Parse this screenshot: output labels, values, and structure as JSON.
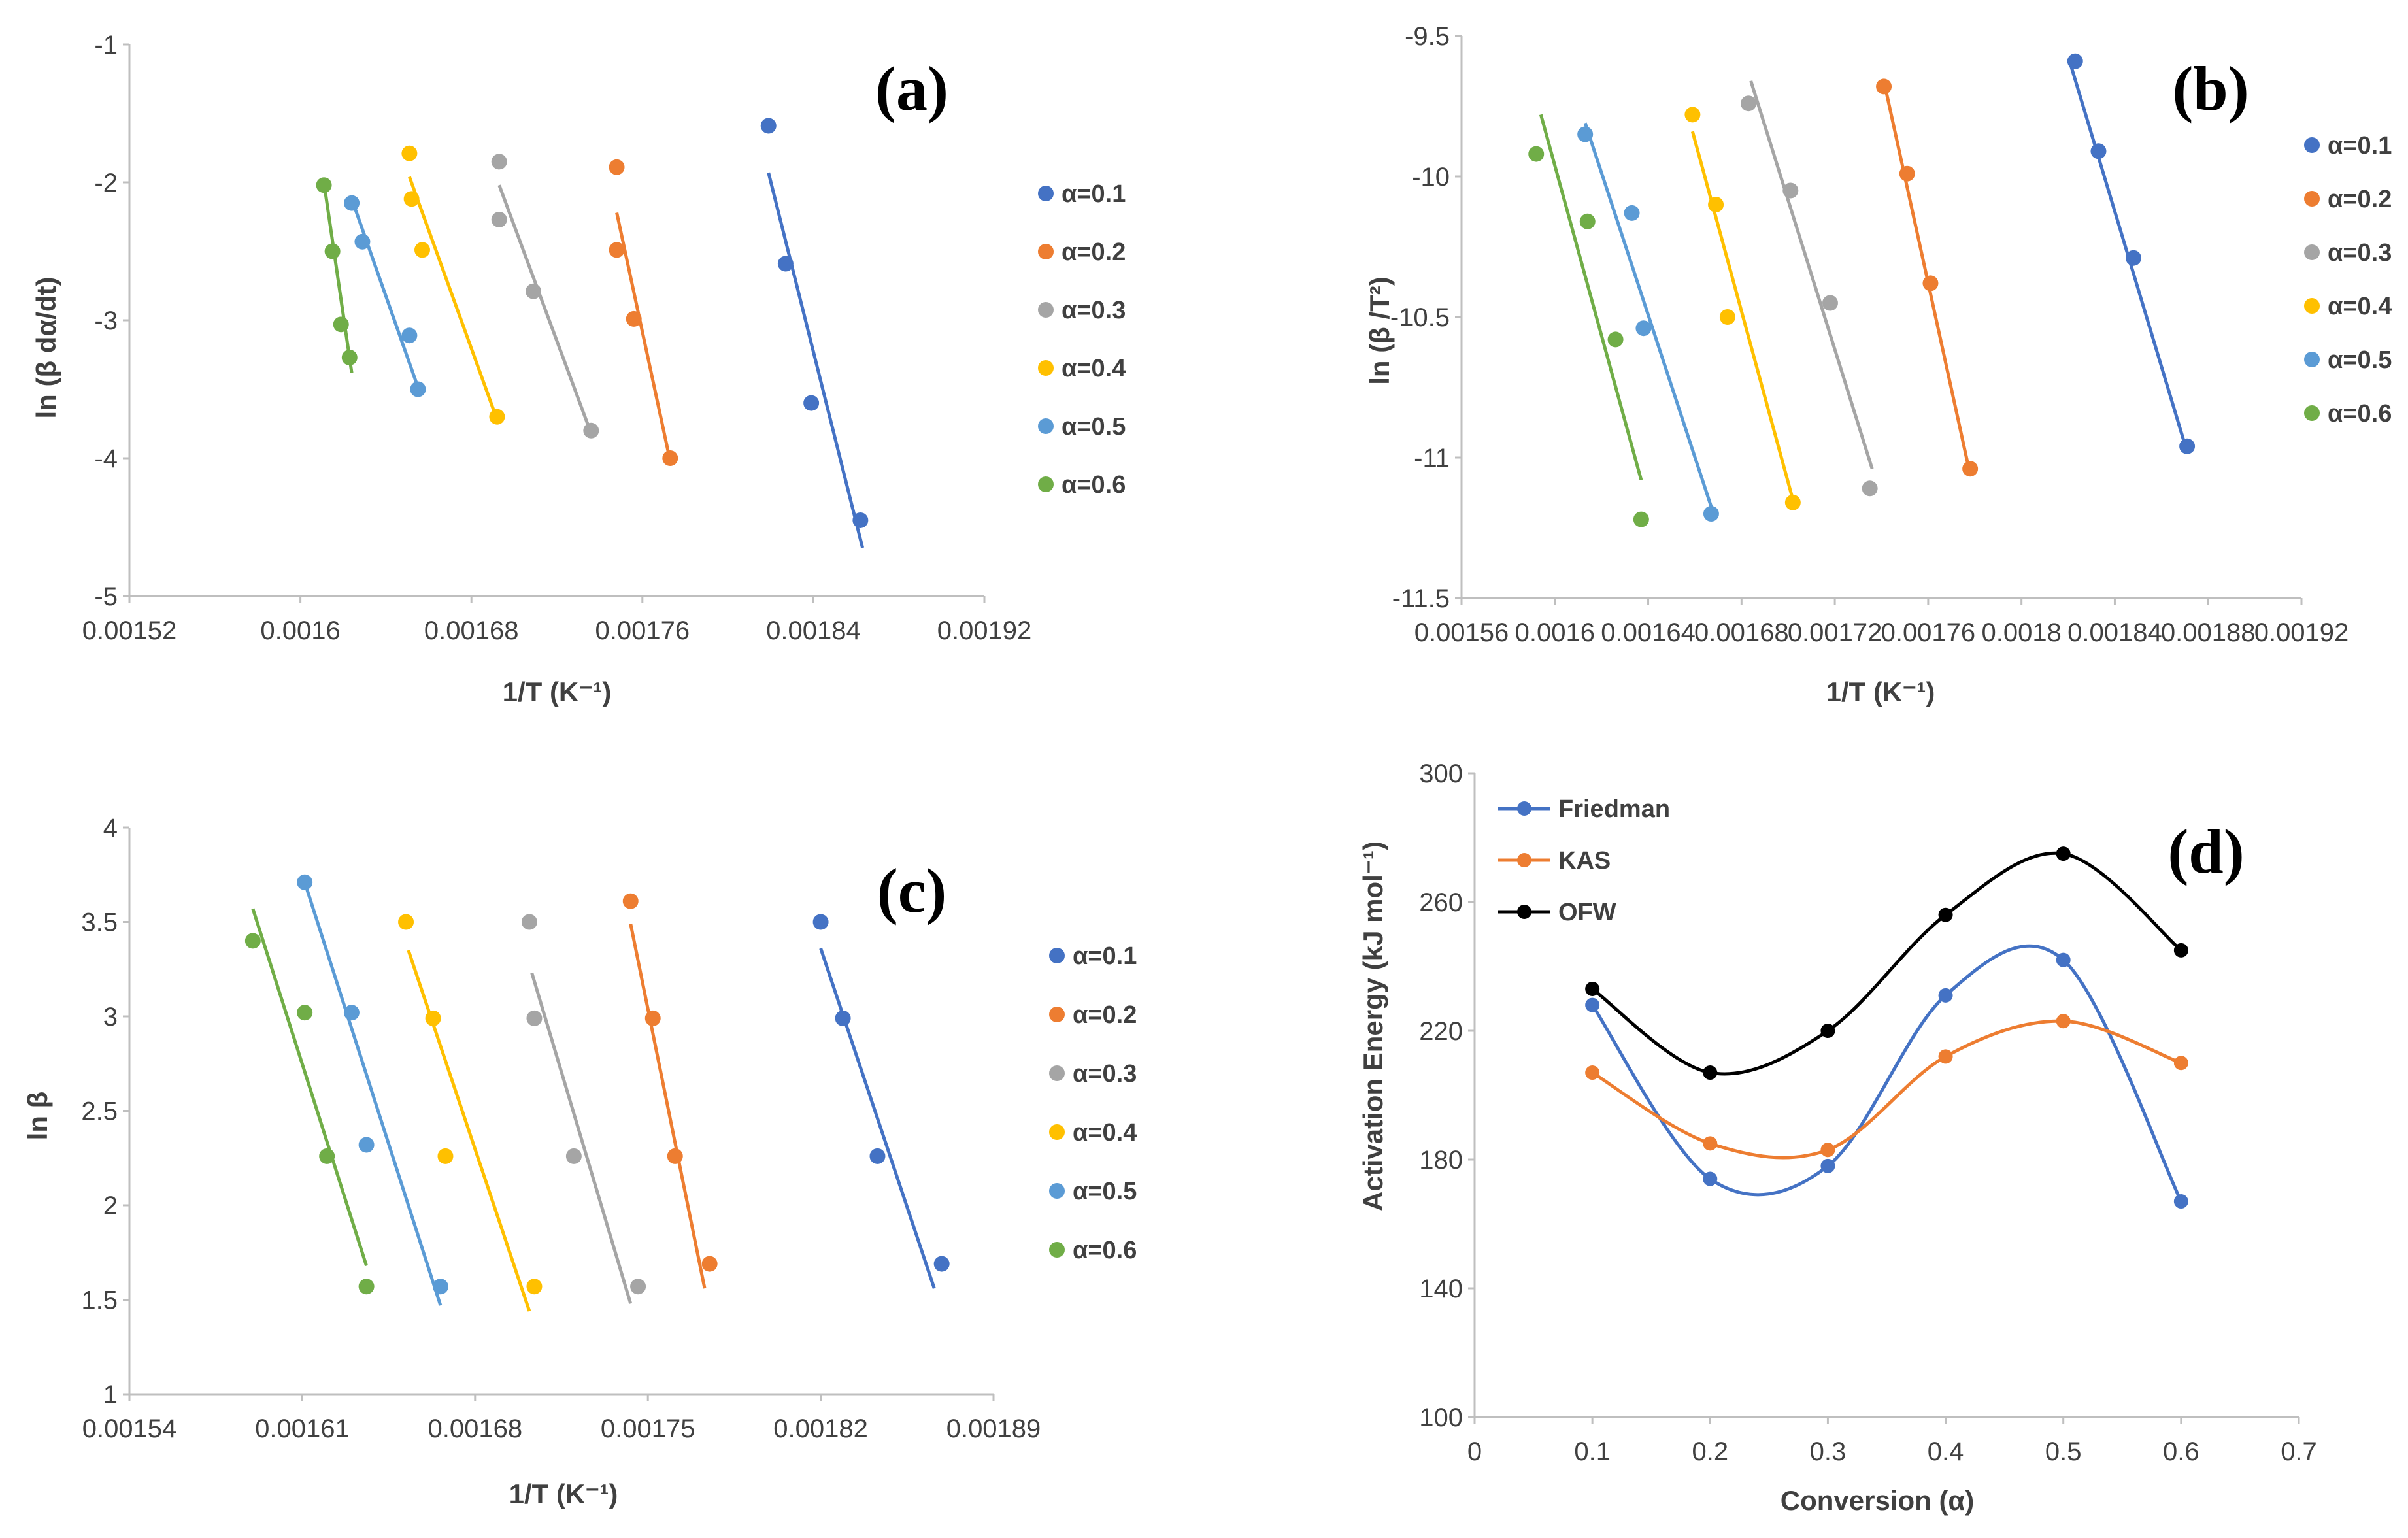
{
  "colors": {
    "a01": "#4472C4",
    "a02": "#ED7D31",
    "a03": "#A5A5A5",
    "a04": "#FFC000",
    "a05": "#5B9BD5",
    "a06": "#70AD47",
    "black": "#000000",
    "axis": "#BFBFBF",
    "text": "#404040"
  },
  "chart_data": [
    {
      "id": "a",
      "panel_label": "(a)",
      "type": "scatter",
      "xlabel": "1/T (K⁻¹)",
      "ylabel": "ln (β dα/dt)",
      "xlim": [
        0.00152,
        0.00192
      ],
      "ylim": [
        -5,
        -1
      ],
      "xticks": [
        "0.00152",
        "0.0016",
        "0.00168",
        "0.00176",
        "0.00184",
        "0.00192"
      ],
      "yticks": [
        "-5",
        "-4",
        "-3",
        "-2",
        "-1"
      ],
      "series": [
        {
          "name": "α=0.1",
          "color": "#4472C4",
          "points": [
            [
              0.001819,
              -1.59
            ],
            [
              0.001827,
              -2.59
            ],
            [
              0.001839,
              -3.6
            ],
            [
              0.001862,
              -4.45
            ]
          ],
          "fit": [
            [
              0.001819,
              -1.93
            ],
            [
              0.001863,
              -4.65
            ]
          ]
        },
        {
          "name": "α=0.2",
          "color": "#ED7D31",
          "points": [
            [
              0.001748,
              -1.89
            ],
            [
              0.001748,
              -2.49
            ],
            [
              0.001756,
              -2.99
            ],
            [
              0.001773,
              -4.0
            ]
          ],
          "fit": [
            [
              0.001748,
              -2.22
            ],
            [
              0.001773,
              -4.02
            ]
          ]
        },
        {
          "name": "α=0.3",
          "color": "#A5A5A5",
          "points": [
            [
              0.001693,
              -1.85
            ],
            [
              0.001693,
              -2.27
            ],
            [
              0.001709,
              -2.79
            ],
            [
              0.001736,
              -3.8
            ]
          ],
          "fit": [
            [
              0.001693,
              -2.02
            ],
            [
              0.001736,
              -3.82
            ]
          ]
        },
        {
          "name": "α=0.4",
          "color": "#FFC000",
          "points": [
            [
              0.001651,
              -1.79
            ],
            [
              0.001652,
              -2.12
            ],
            [
              0.001657,
              -2.49
            ],
            [
              0.001692,
              -3.7
            ]
          ],
          "fit": [
            [
              0.001651,
              -1.96
            ],
            [
              0.001692,
              -3.72
            ]
          ]
        },
        {
          "name": "α=0.5",
          "color": "#5B9BD5",
          "points": [
            [
              0.001624,
              -2.15
            ],
            [
              0.001629,
              -2.43
            ],
            [
              0.001651,
              -3.11
            ],
            [
              0.001655,
              -3.5
            ]
          ],
          "fit": [
            [
              0.001624,
              -2.12
            ],
            [
              0.001656,
              -3.53
            ]
          ]
        },
        {
          "name": "α=0.6",
          "color": "#70AD47",
          "points": [
            [
              0.001611,
              -2.02
            ],
            [
              0.001615,
              -2.5
            ],
            [
              0.001619,
              -3.03
            ],
            [
              0.001623,
              -3.27
            ]
          ],
          "fit": [
            [
              0.001611,
              -2.0
            ],
            [
              0.001624,
              -3.38
            ]
          ]
        }
      ]
    },
    {
      "id": "b",
      "panel_label": "(b)",
      "type": "scatter",
      "xlabel": "1/T (K⁻¹)",
      "ylabel": "ln (β /T²)",
      "xlim": [
        0.00156,
        0.00192
      ],
      "ylim": [
        -11.5,
        -9.5
      ],
      "xticks": [
        "0.00156",
        "0.0016",
        "0.00164",
        "0.00168",
        "0.00172",
        "0.00176",
        "0.0018",
        "0.00184",
        "0.00188",
        "0.00192"
      ],
      "yticks": [
        "-11.5",
        "-11",
        "-10.5",
        "-10",
        "-9.5"
      ],
      "series": [
        {
          "name": "α=0.1",
          "color": "#4472C4",
          "points": [
            [
              0.001823,
              -9.59
            ],
            [
              0.001833,
              -9.91
            ],
            [
              0.001848,
              -10.29
            ],
            [
              0.001871,
              -10.96
            ]
          ],
          "fit": [
            [
              0.001821,
              -9.6
            ],
            [
              0.001871,
              -10.98
            ]
          ]
        },
        {
          "name": "α=0.2",
          "color": "#ED7D31",
          "points": [
            [
              0.001741,
              -9.68
            ],
            [
              0.001751,
              -9.99
            ],
            [
              0.001761,
              -10.38
            ],
            [
              0.001778,
              -11.04
            ]
          ],
          "fit": [
            [
              0.001741,
              -9.66
            ],
            [
              0.001778,
              -11.06
            ]
          ]
        },
        {
          "name": "α=0.3",
          "color": "#A5A5A5",
          "points": [
            [
              0.001683,
              -9.74
            ],
            [
              0.001701,
              -10.05
            ],
            [
              0.001718,
              -10.45
            ],
            [
              0.001735,
              -11.11
            ]
          ],
          "fit": [
            [
              0.001684,
              -9.66
            ],
            [
              0.001736,
              -11.04
            ]
          ]
        },
        {
          "name": "α=0.4",
          "color": "#FFC000",
          "points": [
            [
              0.001659,
              -9.78
            ],
            [
              0.001669,
              -10.1
            ],
            [
              0.001674,
              -10.5
            ],
            [
              0.001702,
              -11.16
            ]
          ],
          "fit": [
            [
              0.001659,
              -9.84
            ],
            [
              0.001703,
              -11.18
            ]
          ]
        },
        {
          "name": "α=0.5",
          "color": "#5B9BD5",
          "points": [
            [
              0.001613,
              -9.85
            ],
            [
              0.001633,
              -10.13
            ],
            [
              0.001638,
              -10.54
            ],
            [
              0.001667,
              -11.2
            ]
          ],
          "fit": [
            [
              0.001613,
              -9.81
            ],
            [
              0.001668,
              -11.2
            ]
          ]
        },
        {
          "name": "α=0.6",
          "color": "#70AD47",
          "points": [
            [
              0.001592,
              -9.92
            ],
            [
              0.001614,
              -10.16
            ],
            [
              0.001626,
              -10.58
            ],
            [
              0.001637,
              -11.22
            ]
          ],
          "fit": [
            [
              0.001594,
              -9.78
            ],
            [
              0.001637,
              -11.08
            ]
          ]
        }
      ]
    },
    {
      "id": "c",
      "panel_label": "(c)",
      "type": "scatter",
      "xlabel": "1/T (K⁻¹)",
      "ylabel": "ln β",
      "xlim": [
        0.00154,
        0.00189
      ],
      "ylim": [
        1,
        4
      ],
      "xticks": [
        "0.00154",
        "0.00161",
        "0.00168",
        "0.00175",
        "0.00182",
        "0.00189"
      ],
      "yticks": [
        "1",
        "1.5",
        "2",
        "2.5",
        "3",
        "3.5",
        "4"
      ],
      "series": [
        {
          "name": "α=0.1",
          "color": "#4472C4",
          "points": [
            [
              0.00182,
              3.5
            ],
            [
              0.001829,
              2.99
            ],
            [
              0.001843,
              2.26
            ],
            [
              0.001869,
              1.69
            ]
          ],
          "fit": [
            [
              0.00182,
              3.36
            ],
            [
              0.001866,
              1.56
            ]
          ]
        },
        {
          "name": "α=0.2",
          "color": "#ED7D31",
          "points": [
            [
              0.001743,
              3.61
            ],
            [
              0.001752,
              2.99
            ],
            [
              0.001761,
              2.26
            ],
            [
              0.001775,
              1.69
            ]
          ],
          "fit": [
            [
              0.001743,
              3.49
            ],
            [
              0.001773,
              1.56
            ]
          ]
        },
        {
          "name": "α=0.3",
          "color": "#A5A5A5",
          "points": [
            [
              0.001702,
              3.5
            ],
            [
              0.001704,
              2.99
            ],
            [
              0.00172,
              2.26
            ],
            [
              0.001746,
              1.57
            ]
          ],
          "fit": [
            [
              0.001703,
              3.23
            ],
            [
              0.001743,
              1.48
            ]
          ]
        },
        {
          "name": "α=0.4",
          "color": "#FFC000",
          "points": [
            [
              0.001652,
              3.5
            ],
            [
              0.001663,
              2.99
            ],
            [
              0.001668,
              2.26
            ],
            [
              0.001704,
              1.57
            ]
          ],
          "fit": [
            [
              0.001653,
              3.35
            ],
            [
              0.001702,
              1.44
            ]
          ]
        },
        {
          "name": "α=0.5",
          "color": "#5B9BD5",
          "points": [
            [
              0.001611,
              3.71
            ],
            [
              0.00163,
              3.02
            ],
            [
              0.001636,
              2.32
            ],
            [
              0.001666,
              1.57
            ]
          ],
          "fit": [
            [
              0.001611,
              3.71
            ],
            [
              0.001666,
              1.47
            ]
          ]
        },
        {
          "name": "α=0.6",
          "color": "#70AD47",
          "points": [
            [
              0.00159,
              3.4
            ],
            [
              0.001611,
              3.02
            ],
            [
              0.00162,
              2.26
            ],
            [
              0.001636,
              1.57
            ]
          ],
          "fit": [
            [
              0.00159,
              3.57
            ],
            [
              0.001636,
              1.68
            ]
          ]
        }
      ]
    },
    {
      "id": "d",
      "panel_label": "(d)",
      "type": "line",
      "xlabel": "Conversion (α)",
      "ylabel": "Activation Energy (kJ mol⁻¹)",
      "xlim": [
        0,
        0.7
      ],
      "ylim": [
        100,
        300
      ],
      "xticks": [
        "0",
        "0.1",
        "0.2",
        "0.3",
        "0.4",
        "0.5",
        "0.6",
        "0.7"
      ],
      "yticks": [
        "100",
        "140",
        "180",
        "220",
        "260",
        "300"
      ],
      "x": [
        0.1,
        0.2,
        0.3,
        0.4,
        0.5,
        0.6
      ],
      "series": [
        {
          "name": "Friedman",
          "color": "#4472C4",
          "values": [
            228,
            174,
            178,
            231,
            242,
            167
          ]
        },
        {
          "name": "KAS",
          "color": "#ED7D31",
          "values": [
            207,
            185,
            183,
            212,
            223,
            210
          ]
        },
        {
          "name": "OFW",
          "color": "#000000",
          "values": [
            233,
            207,
            220,
            256,
            275,
            245
          ]
        }
      ]
    }
  ]
}
